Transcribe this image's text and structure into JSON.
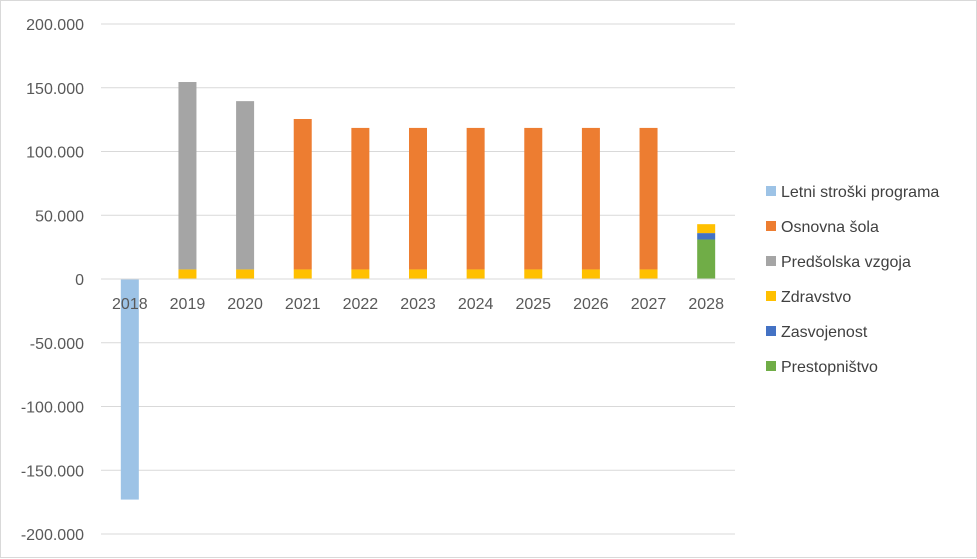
{
  "chart_data": {
    "type": "bar",
    "stacked": true,
    "categories": [
      "2018",
      "2019",
      "2020",
      "2021",
      "2022",
      "2023",
      "2024",
      "2025",
      "2026",
      "2027",
      "2028"
    ],
    "series": [
      {
        "name": "Letni  stroški programa",
        "color": "#9dc3e6",
        "values": [
          -173000,
          0,
          0,
          0,
          0,
          0,
          0,
          0,
          0,
          0,
          0
        ]
      },
      {
        "name": "Osnovna šola",
        "color": "#ed7d31",
        "values": [
          0,
          0,
          0,
          118000,
          111000,
          111000,
          111000,
          111000,
          111000,
          111000,
          0
        ]
      },
      {
        "name": "Predšolska vzgoja",
        "color": "#a5a5a5",
        "values": [
          0,
          147000,
          132000,
          0,
          0,
          0,
          0,
          0,
          0,
          0,
          0
        ]
      },
      {
        "name": "Zdravstvo",
        "color": "#ffc000",
        "values": [
          0,
          7500,
          7500,
          7500,
          7500,
          7500,
          7500,
          7500,
          7500,
          7500,
          7000
        ]
      },
      {
        "name": "Zasvojenost",
        "color": "#4472c4",
        "values": [
          0,
          0,
          0,
          0,
          0,
          0,
          0,
          0,
          0,
          0,
          5000
        ]
      },
      {
        "name": "Prestopništvo",
        "color": "#70ad47",
        "values": [
          0,
          0,
          0,
          0,
          0,
          0,
          0,
          0,
          0,
          0,
          31000
        ]
      }
    ],
    "stack_order": [
      "Prestopništvo",
      "Zasvojenost",
      "Zdravstvo",
      "Predšolska vzgoja",
      "Osnovna šola",
      "Letni  stroški programa"
    ],
    "ylim": [
      -200000,
      200000
    ],
    "y_ticks": [
      200000,
      150000,
      100000,
      50000,
      0,
      -50000,
      -100000,
      -150000,
      -200000
    ],
    "y_tick_labels": [
      "200.000",
      "150.000",
      "100.000",
      "50.000",
      "0",
      "-50.000",
      "-100.000",
      "-150.000",
      "-200.000"
    ],
    "grid": true,
    "legend_position": "right",
    "title": "",
    "xlabel": "",
    "ylabel": ""
  }
}
